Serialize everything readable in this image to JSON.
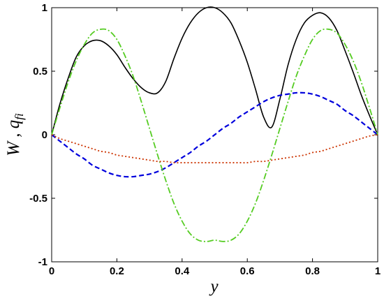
{
  "chart_data": {
    "type": "line",
    "title": "",
    "xlabel": "y",
    "ylabel_main": "W",
    "ylabel_sep": " , ",
    "ylabel_q": "q",
    "ylabel_q_sub": "fi",
    "xlim": [
      0,
      1
    ],
    "ylim": [
      -1,
      1
    ],
    "grid": false,
    "x_ticks": [
      0,
      0.2,
      0.4,
      0.6,
      0.8,
      1
    ],
    "x_tick_labels": [
      "0",
      "0.2",
      "0.4",
      "0.6",
      "0.8",
      "1"
    ],
    "y_ticks": [
      -1,
      -0.5,
      0,
      0.5,
      1
    ],
    "y_tick_labels": [
      "-1",
      "-0.5",
      "0",
      "0.5",
      "1"
    ],
    "x": [
      0,
      0.025,
      0.05,
      0.075,
      0.1,
      0.125,
      0.15,
      0.175,
      0.2,
      0.225,
      0.25,
      0.275,
      0.3,
      0.325,
      0.35,
      0.375,
      0.4,
      0.425,
      0.45,
      0.475,
      0.5,
      0.525,
      0.55,
      0.575,
      0.6,
      0.625,
      0.65,
      0.675,
      0.7,
      0.725,
      0.75,
      0.775,
      0.8,
      0.825,
      0.85,
      0.875,
      0.9,
      0.925,
      0.95,
      0.975,
      1
    ],
    "series": [
      {
        "color": "#000000",
        "dash": "",
        "width": 1.6,
        "values": [
          0,
          0.24,
          0.44,
          0.61,
          0.7,
          0.74,
          0.74,
          0.7,
          0.63,
          0.53,
          0.44,
          0.37,
          0.33,
          0.33,
          0.42,
          0.6,
          0.76,
          0.88,
          0.96,
          1.0,
          1.0,
          0.96,
          0.88,
          0.74,
          0.57,
          0.36,
          0.14,
          0.06,
          0.28,
          0.55,
          0.75,
          0.88,
          0.94,
          0.96,
          0.92,
          0.82,
          0.66,
          0.49,
          0.31,
          0.15,
          0
        ]
      },
      {
        "color": "#0000dd",
        "dash": "7 4",
        "width": 2.2,
        "values": [
          0,
          -0.05,
          -0.1,
          -0.15,
          -0.19,
          -0.24,
          -0.27,
          -0.3,
          -0.32,
          -0.33,
          -0.33,
          -0.32,
          -0.31,
          -0.29,
          -0.26,
          -0.22,
          -0.18,
          -0.14,
          -0.09,
          -0.05,
          0,
          0.05,
          0.09,
          0.14,
          0.18,
          0.22,
          0.26,
          0.29,
          0.31,
          0.32,
          0.33,
          0.33,
          0.32,
          0.3,
          0.27,
          0.24,
          0.19,
          0.15,
          0.1,
          0.05,
          0
        ]
      },
      {
        "color": "#55cc22",
        "dash": "9 3 2 3",
        "width": 1.8,
        "values": [
          0,
          0.21,
          0.41,
          0.58,
          0.71,
          0.8,
          0.83,
          0.82,
          0.75,
          0.62,
          0.46,
          0.26,
          0.05,
          -0.16,
          -0.36,
          -0.54,
          -0.68,
          -0.78,
          -0.83,
          -0.84,
          -0.83,
          -0.84,
          -0.83,
          -0.78,
          -0.68,
          -0.54,
          -0.36,
          -0.16,
          0.05,
          0.26,
          0.46,
          0.62,
          0.75,
          0.82,
          0.83,
          0.8,
          0.71,
          0.58,
          0.41,
          0.21,
          0
        ]
      },
      {
        "color": "#cc3300",
        "dash": "2 3",
        "width": 1.8,
        "values": [
          0,
          -0.03,
          -0.05,
          -0.07,
          -0.09,
          -0.11,
          -0.13,
          -0.14,
          -0.16,
          -0.17,
          -0.18,
          -0.19,
          -0.2,
          -0.21,
          -0.21,
          -0.22,
          -0.22,
          -0.22,
          -0.22,
          -0.22,
          -0.22,
          -0.22,
          -0.22,
          -0.22,
          -0.22,
          -0.21,
          -0.21,
          -0.2,
          -0.19,
          -0.18,
          -0.17,
          -0.16,
          -0.14,
          -0.13,
          -0.11,
          -0.09,
          -0.07,
          -0.05,
          -0.03,
          -0.01,
          0
        ]
      }
    ]
  }
}
